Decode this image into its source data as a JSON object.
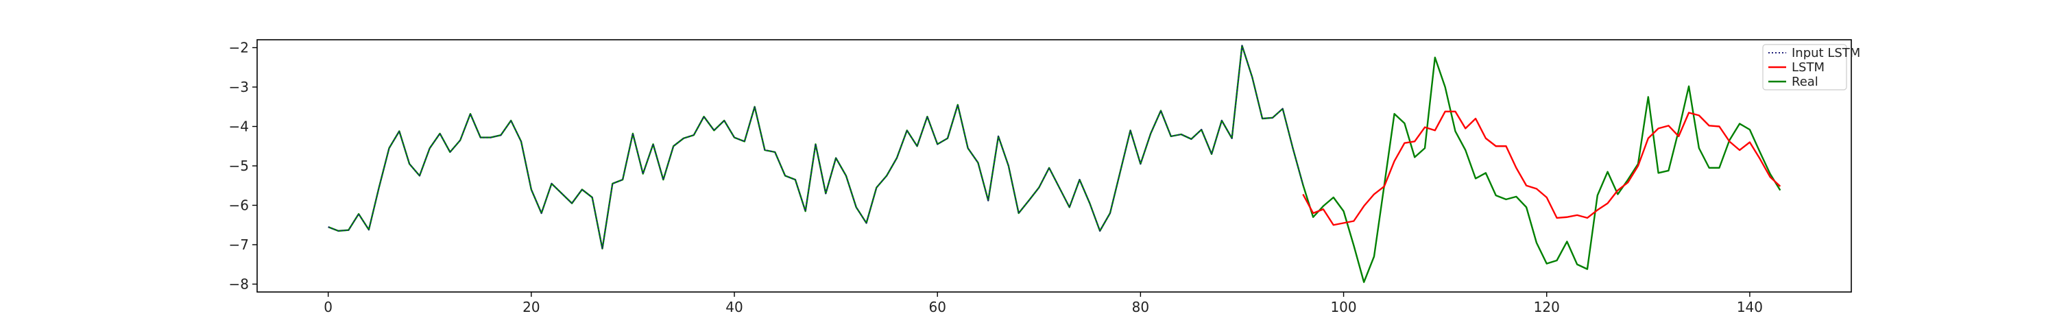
{
  "chart_data": {
    "type": "line",
    "title": "",
    "xlabel": "",
    "ylabel": "",
    "xlim": [
      -7,
      150
    ],
    "ylim": [
      -8.2,
      -1.8
    ],
    "xticks": [
      0,
      20,
      40,
      60,
      80,
      100,
      120,
      140
    ],
    "yticks": [
      -8,
      -7,
      -6,
      -5,
      -4,
      -3,
      -2
    ],
    "grid": false,
    "legend_position": "top-right",
    "series": [
      {
        "name": "Input LSTM",
        "color": "#1f1f7a",
        "style": "dotted",
        "x": [
          0,
          1,
          2,
          3,
          4,
          5,
          6,
          7,
          8,
          9,
          10,
          11,
          12,
          13,
          14,
          15,
          16,
          17,
          18,
          19,
          20,
          21,
          22,
          23,
          24,
          25,
          26,
          27,
          28,
          29,
          30,
          31,
          32,
          33,
          34,
          35,
          36,
          37,
          38,
          39,
          40,
          41,
          42,
          43,
          44,
          45,
          46,
          47,
          48,
          49,
          50,
          51,
          52,
          53,
          54,
          55,
          56,
          57,
          58,
          59,
          60,
          61,
          62,
          63,
          64,
          65,
          66,
          67,
          68,
          69,
          70,
          71,
          72,
          73,
          74,
          75,
          76,
          77,
          78,
          79,
          80,
          81,
          82,
          83,
          84,
          85,
          86,
          87,
          88,
          89,
          90,
          91,
          92,
          93,
          94,
          95,
          96
        ],
        "values": [
          -6.55,
          -6.65,
          -6.63,
          -6.22,
          -6.62,
          -5.55,
          -4.55,
          -4.12,
          -4.95,
          -5.25,
          -4.55,
          -4.18,
          -4.65,
          -4.35,
          -3.68,
          -4.28,
          -4.28,
          -4.22,
          -3.85,
          -4.38,
          -5.6,
          -6.2,
          -5.45,
          -5.7,
          -5.95,
          -5.6,
          -5.8,
          -7.1,
          -5.45,
          -5.35,
          -4.18,
          -5.2,
          -4.45,
          -5.35,
          -4.5,
          -4.3,
          -4.22,
          -3.75,
          -4.1,
          -3.85,
          -4.28,
          -4.38,
          -3.5,
          -4.6,
          -4.65,
          -5.25,
          -5.35,
          -6.15,
          -4.45,
          -5.7,
          -4.8,
          -5.25,
          -6.05,
          -6.45,
          -5.55,
          -5.25,
          -4.8,
          -4.1,
          -4.5,
          -3.75,
          -4.45,
          -4.3,
          -3.45,
          -4.55,
          -4.92,
          -5.88,
          -4.25,
          -5.0,
          -6.2,
          -5.88,
          -5.55,
          -5.05,
          -5.55,
          -6.05,
          -5.35,
          -5.95,
          -6.65,
          -6.2,
          -5.15,
          -4.1,
          -4.95,
          -4.18,
          -3.6,
          -4.25,
          -4.2,
          -4.32,
          -4.08,
          -4.7,
          -3.85,
          -4.3,
          -1.95,
          -2.75,
          -3.8,
          -3.78,
          -3.55,
          -4.55,
          -5.48
        ]
      },
      {
        "name": "LSTM",
        "color": "#ff0000",
        "style": "solid",
        "x": [
          96,
          97,
          98,
          99,
          100,
          101,
          102,
          103,
          104,
          105,
          106,
          107,
          108,
          109,
          110,
          111,
          112,
          113,
          114,
          115,
          116,
          117,
          118,
          119,
          120,
          121,
          122,
          123,
          124,
          125,
          126,
          127,
          128,
          129,
          130,
          131,
          132,
          133,
          134,
          135,
          136,
          137,
          138,
          139,
          140,
          141,
          142,
          143
        ],
        "values": [
          -5.72,
          -6.2,
          -6.1,
          -6.5,
          -6.45,
          -6.4,
          -6.02,
          -5.72,
          -5.52,
          -4.88,
          -4.42,
          -4.38,
          -4.02,
          -4.1,
          -3.62,
          -3.62,
          -4.05,
          -3.8,
          -4.3,
          -4.5,
          -4.5,
          -5.05,
          -5.5,
          -5.58,
          -5.8,
          -6.32,
          -6.3,
          -6.25,
          -6.32,
          -6.12,
          -5.95,
          -5.62,
          -5.42,
          -5.0,
          -4.3,
          -4.05,
          -3.98,
          -4.25,
          -3.65,
          -3.72,
          -3.98,
          -4.0,
          -4.38,
          -4.6,
          -4.4,
          -4.82,
          -5.28,
          -5.52
        ]
      },
      {
        "name": "Real",
        "color": "#008000",
        "style": "solid",
        "x": [
          0,
          1,
          2,
          3,
          4,
          5,
          6,
          7,
          8,
          9,
          10,
          11,
          12,
          13,
          14,
          15,
          16,
          17,
          18,
          19,
          20,
          21,
          22,
          23,
          24,
          25,
          26,
          27,
          28,
          29,
          30,
          31,
          32,
          33,
          34,
          35,
          36,
          37,
          38,
          39,
          40,
          41,
          42,
          43,
          44,
          45,
          46,
          47,
          48,
          49,
          50,
          51,
          52,
          53,
          54,
          55,
          56,
          57,
          58,
          59,
          60,
          61,
          62,
          63,
          64,
          65,
          66,
          67,
          68,
          69,
          70,
          71,
          72,
          73,
          74,
          75,
          76,
          77,
          78,
          79,
          80,
          81,
          82,
          83,
          84,
          85,
          86,
          87,
          88,
          89,
          90,
          91,
          92,
          93,
          94,
          95,
          96,
          97,
          98,
          99,
          100,
          101,
          102,
          103,
          104,
          105,
          106,
          107,
          108,
          109,
          110,
          111,
          112,
          113,
          114,
          115,
          116,
          117,
          118,
          119,
          120,
          121,
          122,
          123,
          124,
          125,
          126,
          127,
          128,
          129,
          130,
          131,
          132,
          133,
          134,
          135,
          136,
          137,
          138,
          139,
          140,
          141,
          142,
          143
        ],
        "values": [
          -6.55,
          -6.65,
          -6.63,
          -6.22,
          -6.62,
          -5.55,
          -4.55,
          -4.12,
          -4.95,
          -5.25,
          -4.55,
          -4.18,
          -4.65,
          -4.35,
          -3.68,
          -4.28,
          -4.28,
          -4.22,
          -3.85,
          -4.38,
          -5.6,
          -6.2,
          -5.45,
          -5.7,
          -5.95,
          -5.6,
          -5.8,
          -7.1,
          -5.45,
          -5.35,
          -4.18,
          -5.2,
          -4.45,
          -5.35,
          -4.5,
          -4.3,
          -4.22,
          -3.75,
          -4.1,
          -3.85,
          -4.28,
          -4.38,
          -3.5,
          -4.6,
          -4.65,
          -5.25,
          -5.35,
          -6.15,
          -4.45,
          -5.7,
          -4.8,
          -5.25,
          -6.05,
          -6.45,
          -5.55,
          -5.25,
          -4.8,
          -4.1,
          -4.5,
          -3.75,
          -4.45,
          -4.3,
          -3.45,
          -4.55,
          -4.92,
          -5.88,
          -4.25,
          -5.0,
          -6.2,
          -5.88,
          -5.55,
          -5.05,
          -5.55,
          -6.05,
          -5.35,
          -5.95,
          -6.65,
          -6.2,
          -5.15,
          -4.1,
          -4.95,
          -4.18,
          -3.6,
          -4.25,
          -4.2,
          -4.32,
          -4.08,
          -4.7,
          -3.85,
          -4.3,
          -1.95,
          -2.75,
          -3.8,
          -3.78,
          -3.55,
          -4.55,
          -5.48,
          -6.3,
          -6.02,
          -5.8,
          -6.15,
          -7.02,
          -7.95,
          -7.3,
          -5.5,
          -3.68,
          -3.92,
          -4.78,
          -4.55,
          -2.25,
          -3.0,
          -4.12,
          -4.6,
          -5.32,
          -5.18,
          -5.75,
          -5.85,
          -5.78,
          -6.05,
          -6.95,
          -7.48,
          -7.4,
          -6.92,
          -7.5,
          -7.62,
          -5.75,
          -5.15,
          -5.72,
          -5.35,
          -4.95,
          -3.25,
          -5.18,
          -5.12,
          -4.1,
          -2.98,
          -4.55,
          -5.05,
          -5.05,
          -4.35,
          -3.93,
          -4.08,
          -4.65,
          -5.2,
          -5.62
        ]
      }
    ]
  }
}
